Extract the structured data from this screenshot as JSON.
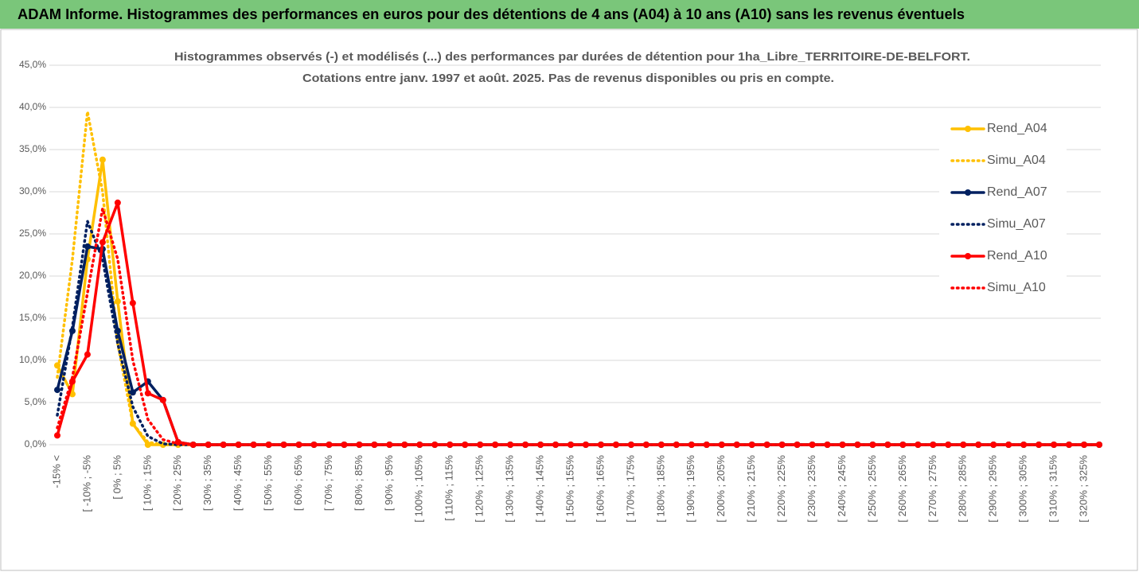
{
  "header": {
    "title": "ADAM Informe. Histogrammes des performances en euros pour des détentions de 4 ans (A04) à 10 ans (A10) sans les revenus éventuels"
  },
  "chart_data": {
    "type": "line",
    "title": "Histogrammes observés (-) et modélisés (...) des performances par durées de détention pour 1ha_Libre_TERRITOIRE-DE-BELFORT.",
    "subtitle": "Cotations entre janv. 1997 et août. 2025. Pas de revenus disponibles ou pris en compte.",
    "categories": [
      "-15% <",
      null,
      "[ -10% ; -5%",
      null,
      "[ 0% ; 5%",
      null,
      "[ 10% ; 15%",
      null,
      "[ 20% ; 25%",
      null,
      "[ 30% ; 35%",
      null,
      "[ 40% ; 45%",
      null,
      "[ 50% ; 55%",
      null,
      "[ 60% ; 65%",
      null,
      "[ 70% ; 75%",
      null,
      "[ 80% ; 85%",
      null,
      "[ 90% ; 95%",
      null,
      "[ 100% ; 105%",
      null,
      "[ 110% ; 115%",
      null,
      "[ 120% ; 125%",
      null,
      "[ 130% ; 135%",
      null,
      "[ 140% ; 145%",
      null,
      "[ 150% ; 155%",
      null,
      "[ 160% ; 165%",
      null,
      "[ 170% ; 175%",
      null,
      "[ 180% ; 185%",
      null,
      "[ 190% ; 195%",
      null,
      "[ 200% ; 205%",
      null,
      "[ 210% ; 215%",
      null,
      "[ 220% ; 225%",
      null,
      "[ 230% ; 235%",
      null,
      "[ 240% ; 245%",
      null,
      "[ 250% ; 255%",
      null,
      "[ 260% ; 265%",
      null,
      "[ 270% ; 275%",
      null,
      "[ 280% ; 285%",
      null,
      "[ 290% ; 295%",
      null,
      "[ 300% ; 305%",
      null,
      "[ 310% ; 315%",
      null,
      "[ 320% ; 325%",
      null
    ],
    "series": [
      {
        "name": "Rend_A04",
        "color": "#ffc000",
        "dash": false,
        "values": [
          9.4,
          6,
          22,
          33.8,
          17,
          2.5,
          0,
          0,
          0,
          0,
          0,
          0,
          0,
          0,
          0,
          0,
          0,
          0,
          0,
          0,
          0,
          0,
          0,
          0,
          0,
          0,
          0,
          0,
          0,
          0,
          0,
          0,
          0,
          0,
          0,
          0,
          0,
          0,
          0,
          0,
          0,
          0,
          0,
          0,
          0,
          0,
          0,
          0,
          0,
          0,
          0,
          0,
          0,
          0,
          0,
          0,
          0,
          0,
          0,
          0,
          0,
          0,
          0,
          0,
          0,
          0,
          0,
          0,
          0,
          0
        ]
      },
      {
        "name": "Simu_A04",
        "color": "#ffc000",
        "dash": true,
        "values": [
          8,
          22,
          39.5,
          30,
          12,
          2.5,
          0.3,
          0,
          0,
          0,
          0,
          0,
          0,
          0,
          0,
          0,
          0,
          0,
          0,
          0,
          0,
          0,
          0,
          0,
          0,
          0,
          0,
          0,
          0,
          0,
          0,
          0,
          0,
          0,
          0,
          0,
          0,
          0,
          0,
          0,
          0,
          0,
          0,
          0,
          0,
          0,
          0,
          0,
          0,
          0,
          0,
          0,
          0,
          0,
          0,
          0,
          0,
          0,
          0,
          0,
          0,
          0,
          0,
          0,
          0,
          0,
          0,
          0,
          0,
          0
        ]
      },
      {
        "name": "Rend_A07",
        "color": "#002060",
        "dash": false,
        "values": [
          6.5,
          13.5,
          23.5,
          23.2,
          13.5,
          6.2,
          7.5,
          5.3,
          0.3,
          0,
          0,
          0,
          0,
          0,
          0,
          0,
          0,
          0,
          0,
          0,
          0,
          0,
          0,
          0,
          0,
          0,
          0,
          0,
          0,
          0,
          0,
          0,
          0,
          0,
          0,
          0,
          0,
          0,
          0,
          0,
          0,
          0,
          0,
          0,
          0,
          0,
          0,
          0,
          0,
          0,
          0,
          0,
          0,
          0,
          0,
          0,
          0,
          0,
          0,
          0,
          0,
          0,
          0,
          0,
          0,
          0,
          0,
          0,
          0,
          0
        ]
      },
      {
        "name": "Simu_A07",
        "color": "#002060",
        "dash": true,
        "values": [
          3.5,
          14,
          26.5,
          22,
          12,
          4.5,
          1,
          0.1,
          0,
          0,
          0,
          0,
          0,
          0,
          0,
          0,
          0,
          0,
          0,
          0,
          0,
          0,
          0,
          0,
          0,
          0,
          0,
          0,
          0,
          0,
          0,
          0,
          0,
          0,
          0,
          0,
          0,
          0,
          0,
          0,
          0,
          0,
          0,
          0,
          0,
          0,
          0,
          0,
          0,
          0,
          0,
          0,
          0,
          0,
          0,
          0,
          0,
          0,
          0,
          0,
          0,
          0,
          0,
          0,
          0,
          0,
          0,
          0,
          0,
          0
        ]
      },
      {
        "name": "Rend_A10",
        "color": "#ff0000",
        "dash": false,
        "values": [
          1.1,
          7.5,
          10.7,
          24,
          28.7,
          16.8,
          6.1,
          5.3,
          0.3,
          0,
          0,
          0,
          0,
          0,
          0,
          0,
          0,
          0,
          0,
          0,
          0,
          0,
          0,
          0,
          0,
          0,
          0,
          0,
          0,
          0,
          0,
          0,
          0,
          0,
          0,
          0,
          0,
          0,
          0,
          0,
          0,
          0,
          0,
          0,
          0,
          0,
          0,
          0,
          0,
          0,
          0,
          0,
          0,
          0,
          0,
          0,
          0,
          0,
          0,
          0,
          0,
          0,
          0,
          0,
          0,
          0,
          0,
          0,
          0,
          0
        ]
      },
      {
        "name": "Simu_A10",
        "color": "#ff0000",
        "dash": true,
        "values": [
          2,
          8,
          18,
          28,
          22,
          10,
          3,
          0.6,
          0.1,
          0,
          0,
          0,
          0,
          0,
          0,
          0,
          0,
          0,
          0,
          0,
          0,
          0,
          0,
          0,
          0,
          0,
          0,
          0,
          0,
          0,
          0,
          0,
          0,
          0,
          0,
          0,
          0,
          0,
          0,
          0,
          0,
          0,
          0,
          0,
          0,
          0,
          0,
          0,
          0,
          0,
          0,
          0,
          0,
          0,
          0,
          0,
          0,
          0,
          0,
          0,
          0,
          0,
          0,
          0,
          0,
          0,
          0,
          0,
          0,
          0
        ]
      }
    ],
    "ylim": [
      0,
      45
    ],
    "yticks": [
      {
        "value": 0,
        "label": "0,0%"
      },
      {
        "value": 5,
        "label": "5,0%"
      },
      {
        "value": 10,
        "label": "10,0%"
      },
      {
        "value": 15,
        "label": "15,0%"
      },
      {
        "value": 20,
        "label": "20,0%"
      },
      {
        "value": 25,
        "label": "25,0%"
      },
      {
        "value": 30,
        "label": "30,0%"
      },
      {
        "value": 35,
        "label": "35,0%"
      },
      {
        "value": 40,
        "label": "40,0%"
      },
      {
        "value": 45,
        "label": "45,0%"
      }
    ],
    "grid": true,
    "legend": "upper right"
  }
}
